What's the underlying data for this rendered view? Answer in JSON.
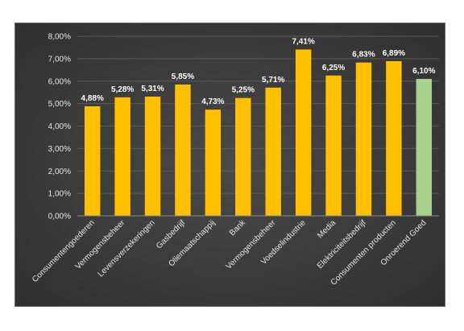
{
  "chart_data": {
    "type": "bar",
    "categories": [
      "Consumentengoederen",
      "Vermogensbeheer",
      "Levensverzekeringen",
      "Gasbedrijf",
      "Oliemaatschappij",
      "Bank",
      "Vermogensbeheer",
      "Voedselindustrie",
      "Media",
      "Elektriciteitsbedrijf",
      "Consumenten producten",
      "Onroerend Goed"
    ],
    "values": [
      4.88,
      5.28,
      5.31,
      5.85,
      4.73,
      5.25,
      5.71,
      7.41,
      6.25,
      6.83,
      6.89,
      6.1
    ],
    "data_labels": [
      "4,88%",
      "5,28%",
      "5,31%",
      "5,85%",
      "4,73%",
      "5,25%",
      "5,71%",
      "7,41%",
      "6,25%",
      "6,83%",
      "6,89%",
      "6,10%"
    ],
    "ylim": [
      0,
      8
    ],
    "y_ticks": [
      0,
      1,
      2,
      3,
      4,
      5,
      6,
      7,
      8
    ],
    "y_tick_labels": [
      "0,00%",
      "1,00%",
      "2,00%",
      "3,00%",
      "4,00%",
      "5,00%",
      "6,00%",
      "7,00%",
      "8,00%"
    ],
    "bar_colors": [
      "#ffc000",
      "#ffc000",
      "#ffc000",
      "#ffc000",
      "#ffc000",
      "#ffc000",
      "#ffc000",
      "#ffc000",
      "#ffc000",
      "#ffc000",
      "#ffc000",
      "#a9d18e"
    ],
    "background_color": "#3b3b3b",
    "grid": true,
    "legend": "none"
  }
}
